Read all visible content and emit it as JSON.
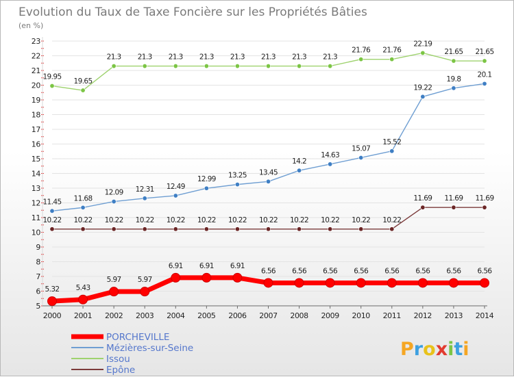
{
  "chart_data": {
    "type": "line",
    "title": "Evolution du Taux de Taxe Foncière sur les Propriétés Bâties",
    "subtitle": "(en %)",
    "categories": [
      "2000",
      "2001",
      "2002",
      "2003",
      "2004",
      "2005",
      "2006",
      "2007",
      "2008",
      "2009",
      "2010",
      "2011",
      "2012",
      "2013",
      "2014"
    ],
    "y_ticks": [
      "5",
      "6",
      "7",
      "8",
      "9",
      "10",
      "11",
      "12",
      "13",
      "14",
      "15",
      "16",
      "17",
      "18",
      "19",
      "20",
      "21",
      "22",
      "23"
    ],
    "ylim": [
      5,
      23
    ],
    "grid": "horizontal",
    "legend_position": "bottom-left",
    "series": [
      {
        "name": "PORCHEVILLE",
        "color": "#ff0000",
        "marker_color": "#ff0000",
        "values": [
          5.32,
          5.43,
          5.97,
          5.97,
          6.91,
          6.91,
          6.91,
          6.56,
          6.56,
          6.56,
          6.56,
          6.56,
          6.56,
          6.56,
          6.56
        ],
        "labels": [
          "5.32",
          "5.43",
          "5.97",
          "5.97",
          "6.91",
          "6.91",
          "6.91",
          "6.56",
          "6.56",
          "6.56",
          "6.56",
          "6.56",
          "6.56",
          "6.56",
          "6.56"
        ]
      },
      {
        "name": "Mézières-sur-Seine",
        "color": "#6e9ed2",
        "marker_color": "#3f7fc4",
        "values": [
          11.45,
          11.68,
          12.09,
          12.31,
          12.49,
          12.99,
          13.25,
          13.45,
          14.2,
          14.63,
          15.07,
          15.52,
          19.22,
          19.8,
          20.1
        ],
        "labels": [
          "11.45",
          "11.68",
          "12.09",
          "12.31",
          "12.49",
          "12.99",
          "13.25",
          "13.45",
          "14.2",
          "14.63",
          "15.07",
          "15.52",
          "19.22",
          "19.8",
          "20.1"
        ]
      },
      {
        "name": "Issou",
        "color": "#9ed26e",
        "marker_color": "#7cc545",
        "values": [
          19.95,
          19.65,
          21.3,
          21.3,
          21.3,
          21.3,
          21.3,
          21.3,
          21.3,
          21.3,
          21.76,
          21.76,
          22.19,
          21.65,
          21.65
        ],
        "labels": [
          "19.95",
          "19.65",
          "21.3",
          "21.3",
          "21.3",
          "21.3",
          "21.3",
          "21.3",
          "21.3",
          "21.3",
          "21.76",
          "21.76",
          "22.19",
          "21.65",
          "21.65"
        ]
      },
      {
        "name": "Epône",
        "color": "#7b3a3a",
        "marker_color": "#6b2626",
        "values": [
          10.22,
          10.22,
          10.22,
          10.22,
          10.22,
          10.22,
          10.22,
          10.22,
          10.22,
          10.22,
          10.22,
          10.22,
          11.69,
          11.69,
          11.69
        ],
        "labels": [
          "10.22",
          "10.22",
          "10.22",
          "10.22",
          "10.22",
          "10.22",
          "10.22",
          "10.22",
          "10.22",
          "10.22",
          "10.22",
          "10.22",
          "11.69",
          "11.69",
          "11.69"
        ]
      }
    ]
  },
  "brand": {
    "letters": [
      "P",
      "r",
      "o",
      "x",
      "i",
      "t",
      "i"
    ],
    "colors": [
      "#f5a623",
      "#3da0e0",
      "#e8c21a",
      "#e23a2f",
      "#7cc545",
      "#3da0e0",
      "#f5a623"
    ]
  }
}
